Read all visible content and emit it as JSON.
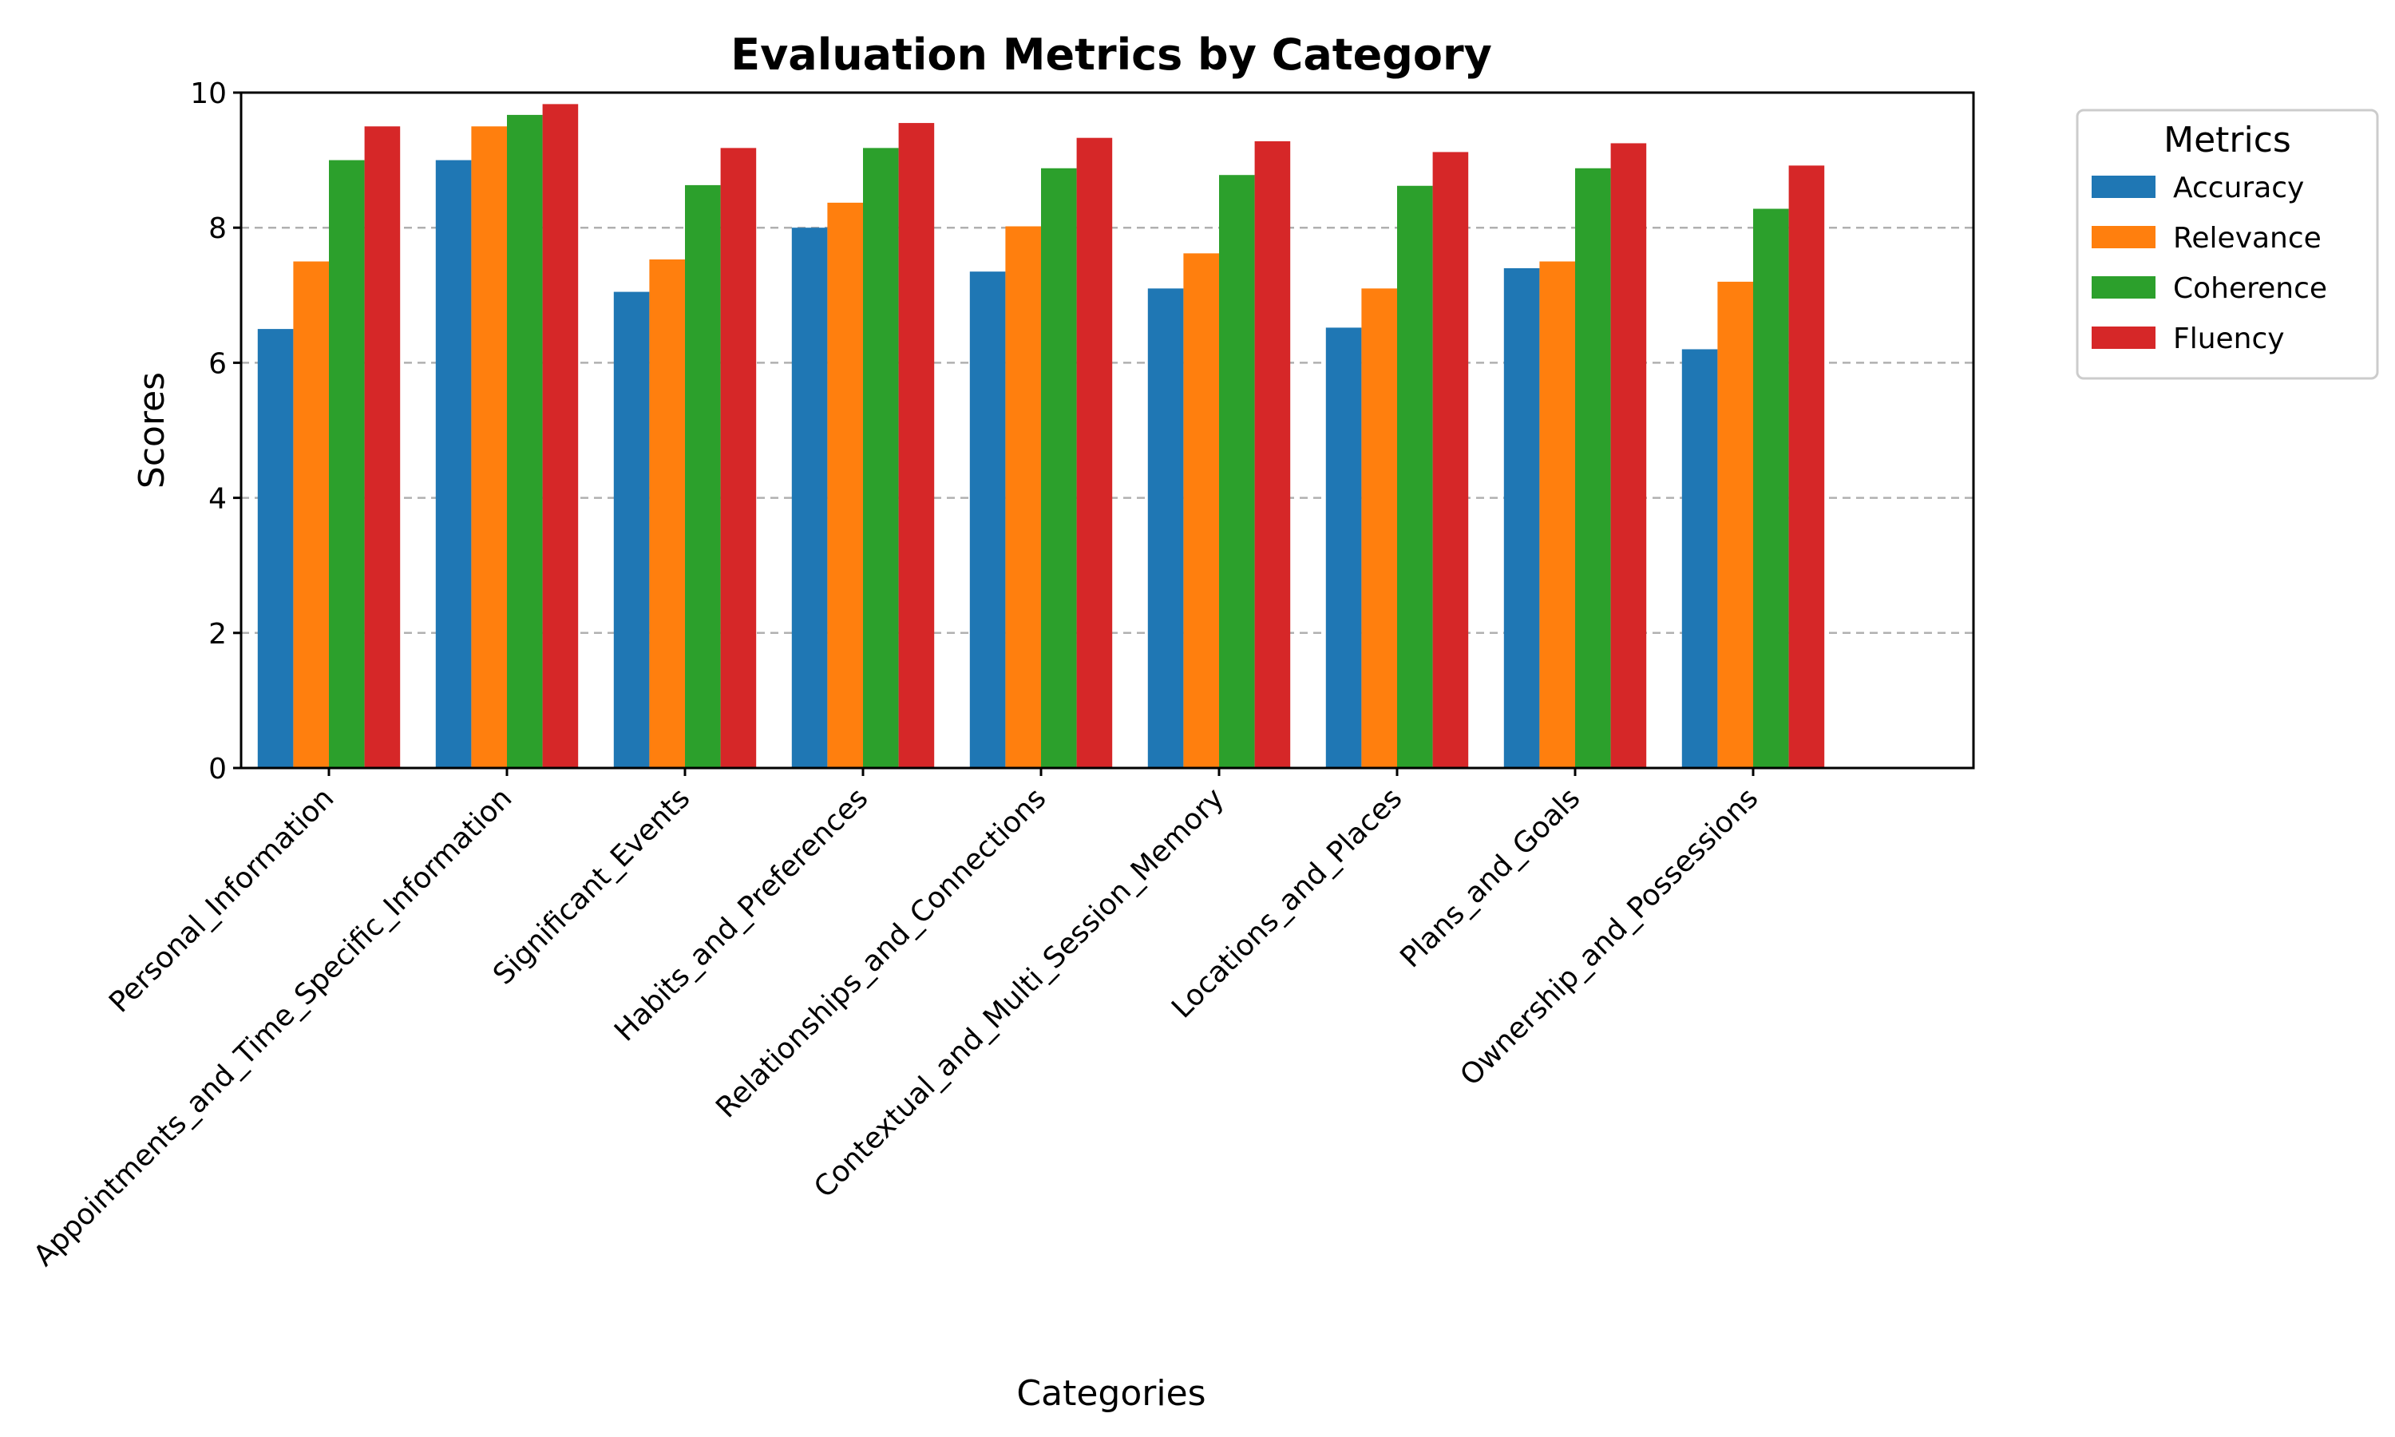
{
  "chart_data": {
    "type": "bar",
    "title": "Evaluation Metrics by Category",
    "xlabel": "Categories",
    "ylabel": "Scores",
    "ylim": [
      0,
      10
    ],
    "yticks": [
      0,
      2,
      4,
      6,
      8,
      10
    ],
    "grid": "y-dashed",
    "legend": {
      "title": "Metrics",
      "placement": "outside-right"
    },
    "categories": [
      "Personal_Information",
      "Appointments_and_Time_Specific_Information",
      "Significant_Events",
      "Habits_and_Preferences",
      "Relationships_and_Connections",
      "Contextual_and_Multi_Session_Memory",
      "Locations_and_Places",
      "Plans_and_Goals",
      "Ownership_and_Possessions"
    ],
    "series": [
      {
        "name": "Accuracy",
        "color": "#1f77b4",
        "values": [
          6.5,
          9.0,
          7.05,
          8.0,
          7.35,
          7.1,
          6.52,
          7.4,
          6.2
        ]
      },
      {
        "name": "Relevance",
        "color": "#ff7f0e",
        "values": [
          7.5,
          9.5,
          7.53,
          8.37,
          8.02,
          7.62,
          7.1,
          7.5,
          7.2
        ]
      },
      {
        "name": "Coherence",
        "color": "#2ca02c",
        "values": [
          9.0,
          9.67,
          8.63,
          9.18,
          8.88,
          8.78,
          8.62,
          8.88,
          8.28
        ]
      },
      {
        "name": "Fluency",
        "color": "#d62728",
        "values": [
          9.5,
          9.83,
          9.18,
          9.55,
          9.33,
          9.28,
          9.12,
          9.25,
          8.92
        ]
      }
    ]
  }
}
